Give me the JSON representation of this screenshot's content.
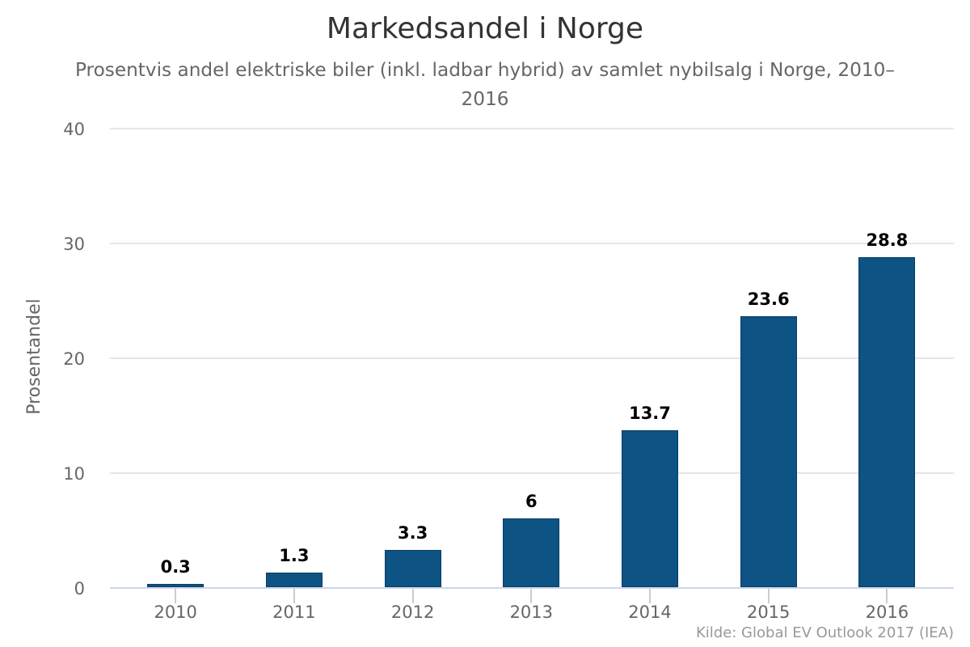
{
  "chart_data": {
    "type": "bar",
    "title": "Markedsandel i Norge",
    "subtitle": "Prosentvis andel elektriske biler (inkl. ladbar hybrid) av samlet nybilsalg i Norge, 2010–2016",
    "subtitle_lines": [
      "Prosentvis andel elektriske biler (inkl. ladbar hybrid) av samlet nybilsalg i Norge, 2010–",
      "2016"
    ],
    "xlabel": "",
    "ylabel": "Prosentandel",
    "categories": [
      "2010",
      "2011",
      "2012",
      "2013",
      "2014",
      "2015",
      "2016"
    ],
    "values": [
      0.3,
      1.3,
      3.3,
      6,
      13.7,
      23.6,
      28.8
    ],
    "value_labels": [
      "0.3",
      "1.3",
      "3.3",
      "6",
      "13.7",
      "23.6",
      "28.8"
    ],
    "yticks": [
      0,
      10,
      20,
      30,
      40
    ],
    "ylim": [
      0,
      40
    ],
    "grid": true,
    "legend": false,
    "credit": "Kilde: Global EV Outlook 2017 (IEA)",
    "colors": {
      "bar_fill": "#0d5384",
      "bar_border": "#0b3d62",
      "gridline": "#e6e6e6",
      "axis_line": "#ccd6eb",
      "tick": "#cccccc",
      "title": "#333333",
      "subtitle": "#666666",
      "axis_labels": "#666666",
      "data_label": "#000000",
      "credit": "#999999",
      "background": "#ffffff"
    }
  }
}
